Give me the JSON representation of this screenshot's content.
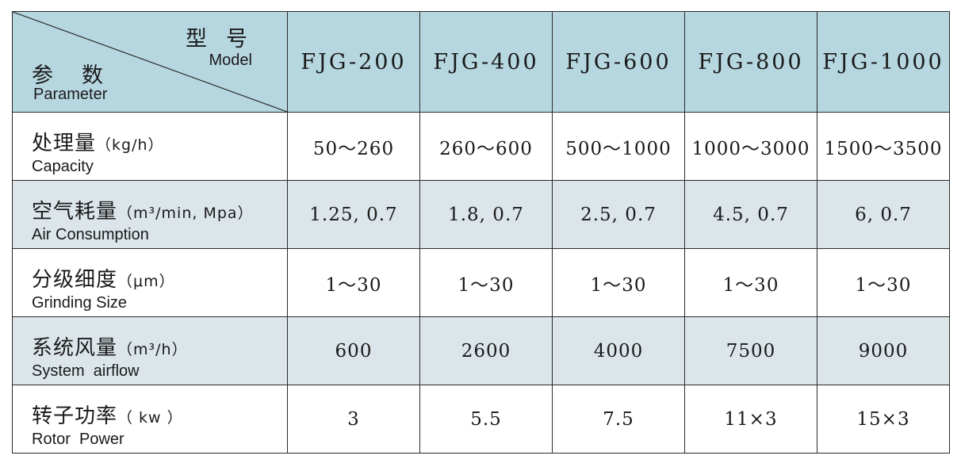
{
  "header": {
    "corner_model_zh": "型号",
    "corner_model_en": "Model",
    "corner_param_zh": "参数",
    "corner_param_en": "Parameter",
    "models": [
      "FJG-200",
      "FJG-400",
      "FJG-600",
      "FJG-800",
      "FJG-1000"
    ]
  },
  "rows": [
    {
      "param_zh": "处理量",
      "unit": "（kg/h）",
      "param_en": "Capacity",
      "values": [
        "50～260",
        "260～600",
        "500～1000",
        "1000～3000",
        "1500～3500"
      ]
    },
    {
      "param_zh": "空气耗量",
      "unit": "（m³/min, Mpa）",
      "param_en": "Air Consumption",
      "values": [
        "1.25, 0.7",
        "1.8, 0.7",
        "2.5, 0.7",
        "4.5, 0.7",
        "6, 0.7"
      ]
    },
    {
      "param_zh": "分级细度",
      "unit": "（μm）",
      "param_en": "Grinding Size",
      "values": [
        "1～30",
        "1～30",
        "1～30",
        "1～30",
        "1～30"
      ]
    },
    {
      "param_zh": "系统风量",
      "unit": "（m³/h）",
      "param_en": "System  airflow",
      "values": [
        "600",
        "2600",
        "4000",
        "7500",
        "9000"
      ]
    },
    {
      "param_zh": "转子功率",
      "unit": "（ kw ）",
      "param_en": "Rotor  Power",
      "values": [
        "3",
        "5.5",
        "7.5",
        "11×3",
        "15×3"
      ]
    }
  ]
}
